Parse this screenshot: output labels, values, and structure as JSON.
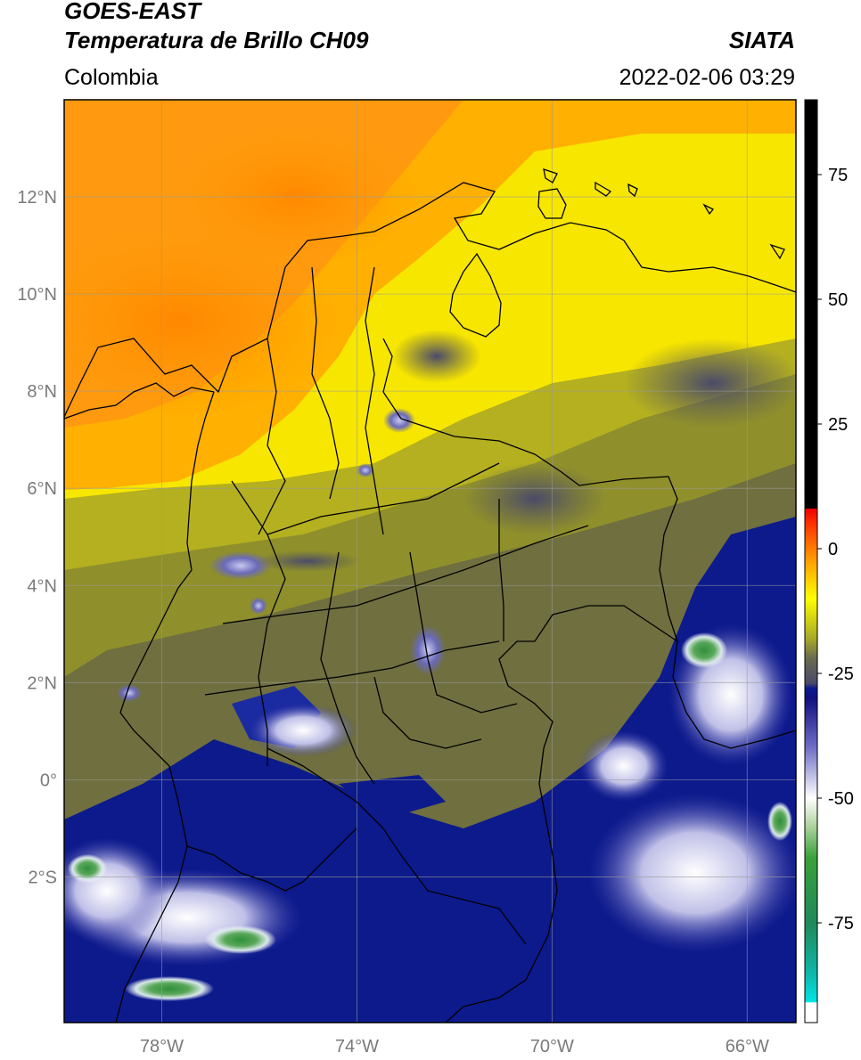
{
  "header": {
    "satellite": "GOES-EAST",
    "product": "Temperatura de Brillo CH09",
    "organization": "SIATA",
    "region": "Colombia",
    "datetime": "2022-02-06 03:29"
  },
  "map": {
    "lon_min": -80,
    "lon_max": -65,
    "lat_min": -5,
    "lat_max": 14,
    "lat_ticks": [
      {
        "value": 12,
        "label": "12°N"
      },
      {
        "value": 10,
        "label": "10°N"
      },
      {
        "value": 8,
        "label": "8°N"
      },
      {
        "value": 6,
        "label": "6°N"
      },
      {
        "value": 4,
        "label": "4°N"
      },
      {
        "value": 2,
        "label": "2°N"
      },
      {
        "value": 0,
        "label": "0°"
      },
      {
        "value": -2,
        "label": "2°S"
      }
    ],
    "lon_ticks": [
      {
        "value": -78,
        "label": "78°W"
      },
      {
        "value": -74,
        "label": "74°W"
      },
      {
        "value": -70,
        "label": "70°W"
      },
      {
        "value": -66,
        "label": "66°W"
      }
    ],
    "grid": true
  },
  "colorbar": {
    "min": -95,
    "max": 90,
    "ticks": [
      {
        "value": 75,
        "label": "75"
      },
      {
        "value": 50,
        "label": "50"
      },
      {
        "value": 25,
        "label": "25"
      },
      {
        "value": 0,
        "label": "0"
      },
      {
        "value": -25,
        "label": "-25"
      },
      {
        "value": -50,
        "label": "-50"
      },
      {
        "value": -75,
        "label": "-75"
      }
    ],
    "stops": [
      {
        "value": -95,
        "color": "#ffffff"
      },
      {
        "value": -91,
        "color": "#ffffff"
      },
      {
        "value": -90.9,
        "color": "#00e5e5"
      },
      {
        "value": -85,
        "color": "#10b5a8"
      },
      {
        "value": -75,
        "color": "#1f8a5a"
      },
      {
        "value": -62,
        "color": "#3aa03a"
      },
      {
        "value": -55,
        "color": "#b8d8a8"
      },
      {
        "value": -50,
        "color": "#ffffff"
      },
      {
        "value": -40,
        "color": "#7070c8"
      },
      {
        "value": -30,
        "color": "#101080"
      },
      {
        "value": -28,
        "color": "#0a1a90"
      },
      {
        "value": -27,
        "color": "#4a4a6a"
      },
      {
        "value": -22,
        "color": "#6a6a50"
      },
      {
        "value": -18,
        "color": "#a8a828"
      },
      {
        "value": -10,
        "color": "#ffff00"
      },
      {
        "value": -2,
        "color": "#ff9900"
      },
      {
        "value": 5,
        "color": "#ff3300"
      },
      {
        "value": 8,
        "color": "#ee0000"
      },
      {
        "value": 8.1,
        "color": "#000000"
      },
      {
        "value": 90,
        "color": "#000000"
      }
    ]
  }
}
